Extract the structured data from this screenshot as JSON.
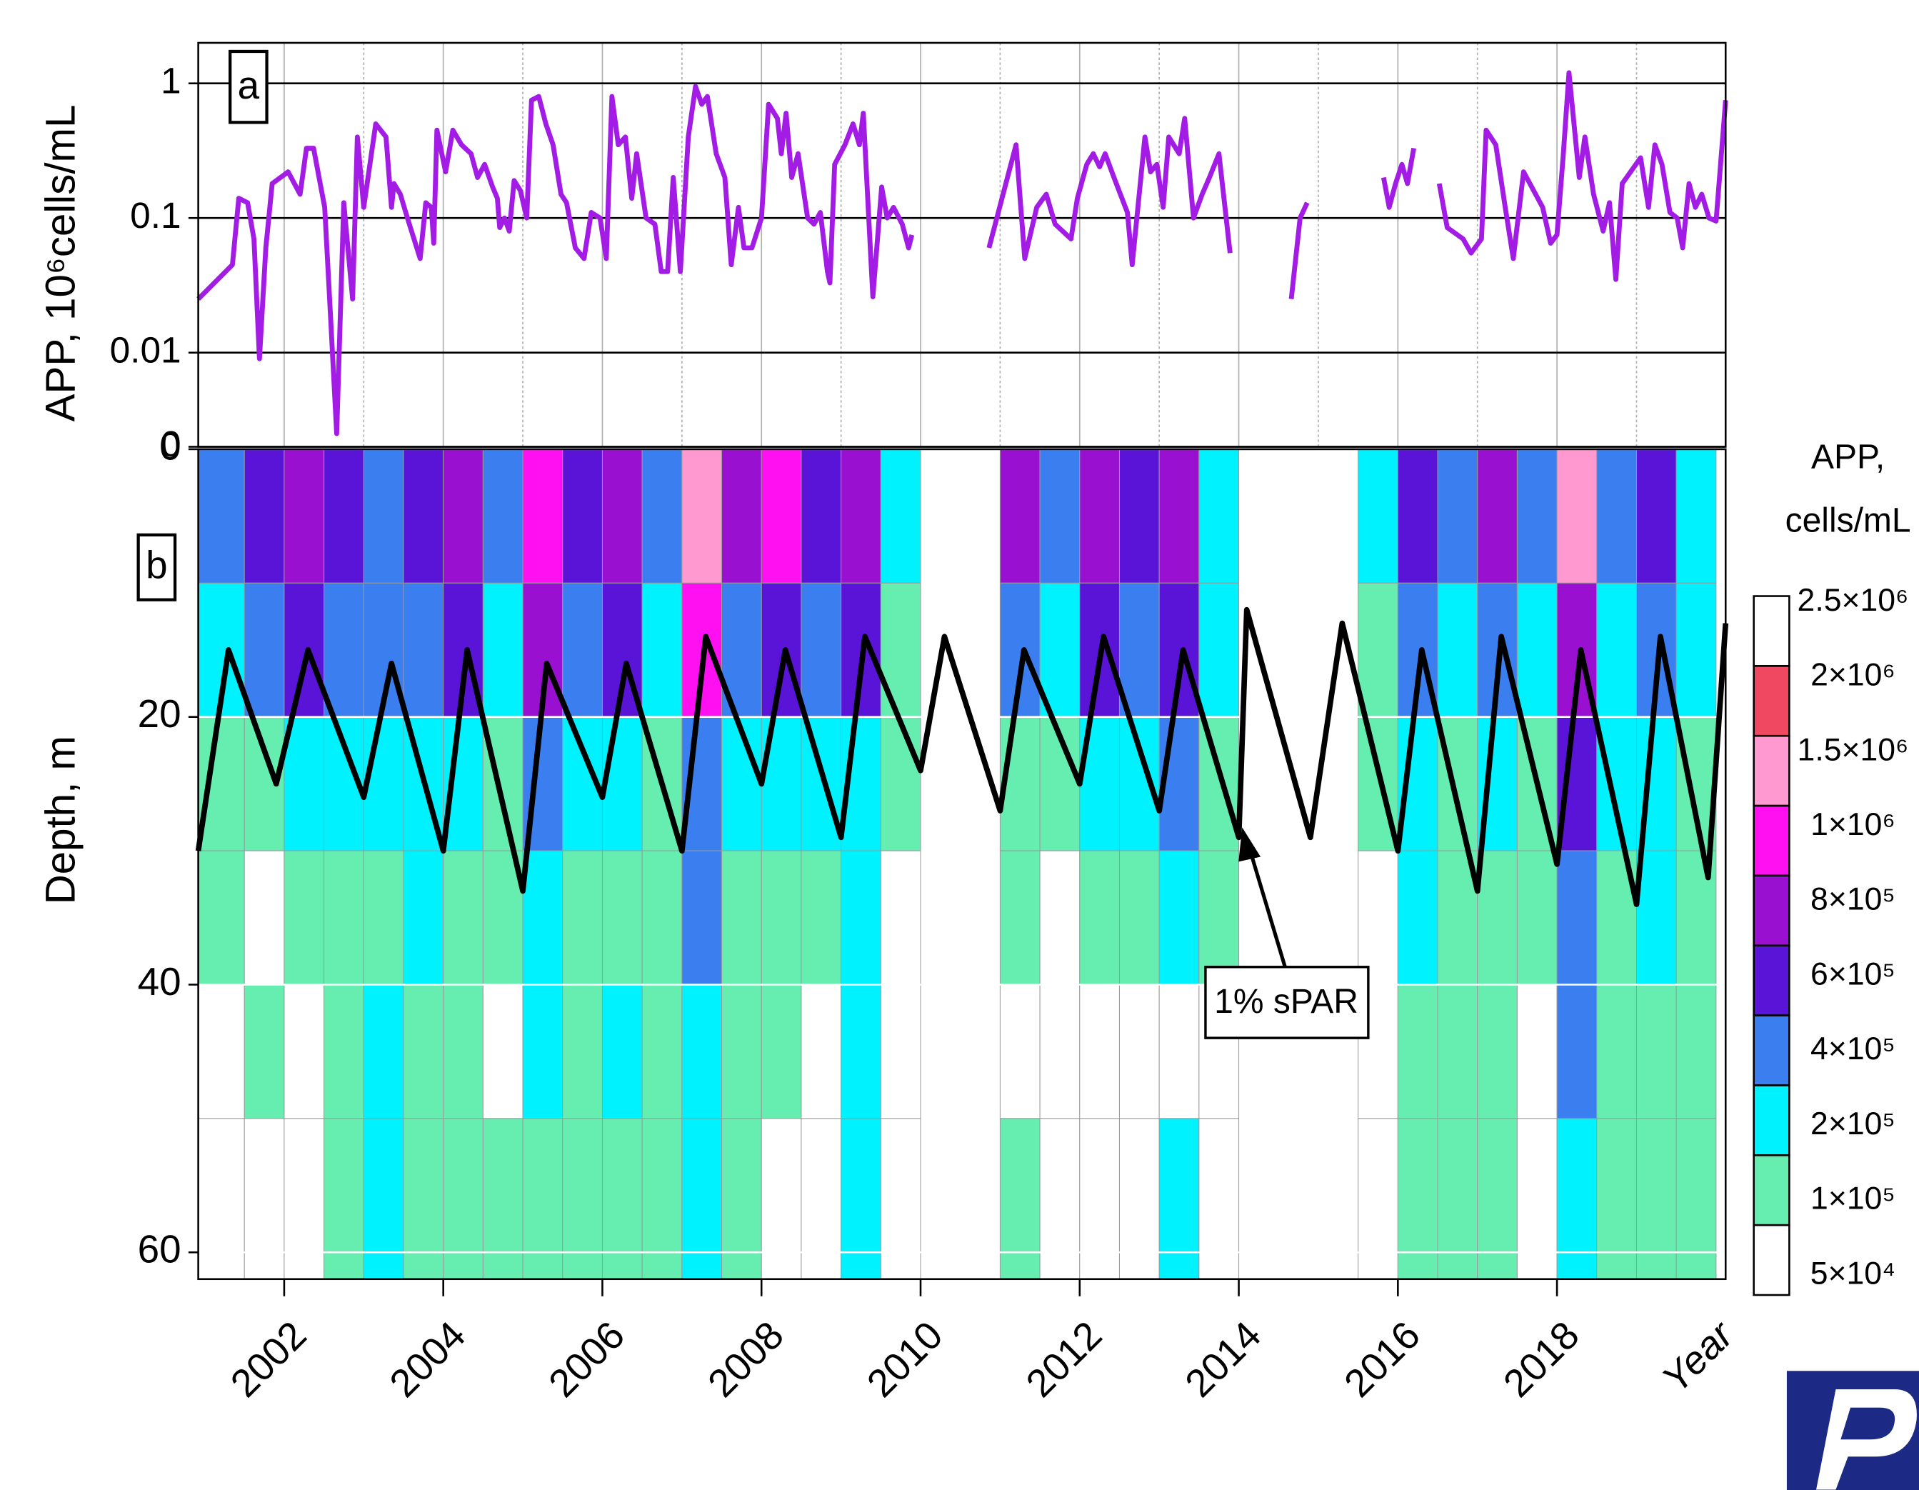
{
  "chart_data": [
    {
      "type": "line",
      "log_y": true,
      "y_label": "APP, 10⁶cells/mL",
      "annotation": "a",
      "xlim": [
        2000.92,
        2020.12
      ],
      "xgrid": [
        2002,
        2003,
        2004,
        2005,
        2006,
        2007,
        2008,
        2009,
        2010,
        2011,
        2012,
        2013,
        2014,
        2015,
        2016,
        2017,
        2018,
        2019
      ],
      "ylim": [
        0.002,
        2
      ],
      "yticks": [
        {
          "value": 0.002,
          "label": "0"
        },
        0.01,
        0.1,
        1
      ],
      "series": [
        {
          "color": "#a21ce6",
          "x": [
            2000.92,
            2001.35,
            2001.43,
            2001.54,
            2001.62,
            2001.69,
            2001.77,
            2001.85,
            2002.05,
            2002.2,
            2002.28,
            2002.37,
            2002.51,
            2002.58,
            2002.66,
            2002.75,
            2002.86,
            2002.92,
            2003.0,
            2003.15,
            2003.28,
            2003.35,
            2003.38,
            2003.46,
            2003.55,
            2003.71,
            2003.78,
            2003.85,
            2003.88,
            2003.92,
            2004.03,
            2004.12,
            2004.23,
            2004.35,
            2004.43,
            2004.52,
            2004.62,
            2004.68,
            2004.71,
            2004.77,
            2004.83,
            2004.89,
            2004.97,
            2005.05,
            2005.11,
            2005.2,
            2005.29,
            2005.38,
            2005.48,
            2005.55,
            2005.66,
            2005.77,
            2005.86,
            2005.97,
            2006.05,
            2006.12,
            2006.2,
            2006.29,
            2006.37,
            2006.43,
            2006.55,
            2006.66,
            2006.74,
            2006.82,
            2006.89,
            2006.98,
            2007.08,
            2007.17,
            2007.25,
            2007.32,
            2007.43,
            2007.54,
            2007.62,
            2007.71,
            2007.78,
            2007.88,
            2008.0,
            2008.09,
            2008.2,
            2008.25,
            2008.31,
            2008.38,
            2008.46,
            2008.58,
            2008.66,
            2008.74,
            2008.83,
            2008.86,
            2008.92,
            2009.05,
            2009.15,
            2009.23,
            2009.28,
            2009.4,
            2009.51,
            2009.58,
            2009.66,
            2009.77,
            2009.85,
            2009.89,
            2010.4,
            2010.86,
            2011.2,
            2011.31,
            2011.46,
            2011.58,
            2011.69,
            2011.89,
            2011.97,
            2012.09,
            2012.17,
            2012.25,
            2012.32,
            2012.43,
            2012.6,
            2012.66,
            2012.82,
            2012.89,
            2012.97,
            2013.05,
            2013.12,
            2013.25,
            2013.32,
            2013.43,
            2013.54,
            2013.63,
            2013.75,
            2013.89,
            2014.3,
            2014.66,
            2014.77,
            2014.86,
            2015.4,
            2015.82,
            2015.89,
            2015.97,
            2016.05,
            2016.12,
            2016.2,
            2016.35,
            2016.52,
            2016.62,
            2016.82,
            2016.92,
            2017.05,
            2017.11,
            2017.23,
            2017.35,
            2017.45,
            2017.58,
            2017.82,
            2017.92,
            2018.0,
            2018.08,
            2018.15,
            2018.28,
            2018.35,
            2018.46,
            2018.58,
            2018.66,
            2018.74,
            2018.82,
            2019.05,
            2019.15,
            2019.23,
            2019.32,
            2019.42,
            2019.51,
            2019.58,
            2019.66,
            2019.74,
            2019.82,
            2019.91,
            2020.0,
            2020.12
          ],
          "values": [
            0.025,
            0.045,
            0.14,
            0.13,
            0.07,
            0.009,
            0.06,
            0.18,
            0.22,
            0.15,
            0.33,
            0.33,
            0.12,
            0.02,
            0.0025,
            0.13,
            0.025,
            0.4,
            0.12,
            0.5,
            0.4,
            0.12,
            0.18,
            0.15,
            0.1,
            0.05,
            0.13,
            0.12,
            0.065,
            0.45,
            0.22,
            0.45,
            0.35,
            0.3,
            0.2,
            0.25,
            0.17,
            0.14,
            0.085,
            0.1,
            0.08,
            0.19,
            0.16,
            0.1,
            0.75,
            0.8,
            0.5,
            0.35,
            0.15,
            0.13,
            0.06,
            0.05,
            0.11,
            0.1,
            0.05,
            0.8,
            0.35,
            0.4,
            0.14,
            0.3,
            0.1,
            0.09,
            0.04,
            0.04,
            0.2,
            0.04,
            0.4,
            0.95,
            0.7,
            0.8,
            0.3,
            0.2,
            0.045,
            0.12,
            0.06,
            0.06,
            0.1,
            0.7,
            0.55,
            0.3,
            0.6,
            0.2,
            0.3,
            0.1,
            0.09,
            0.11,
            0.04,
            0.033,
            0.25,
            0.35,
            0.5,
            0.35,
            0.6,
            0.026,
            0.17,
            0.1,
            0.12,
            0.09,
            0.06,
            0.075,
            null,
            0.06,
            0.35,
            0.05,
            0.12,
            0.15,
            0.09,
            0.07,
            0.14,
            0.25,
            0.3,
            0.24,
            0.3,
            0.2,
            0.11,
            0.045,
            0.4,
            0.22,
            0.25,
            0.12,
            0.4,
            0.3,
            0.55,
            0.1,
            0.15,
            0.2,
            0.3,
            0.055,
            null,
            0.025,
            0.1,
            0.13,
            null,
            0.2,
            0.12,
            0.18,
            0.25,
            0.18,
            0.33,
            null,
            0.18,
            0.085,
            0.07,
            0.055,
            0.07,
            0.45,
            0.35,
            0.12,
            0.05,
            0.22,
            0.12,
            0.065,
            0.075,
            0.3,
            1.2,
            0.2,
            0.4,
            0.15,
            0.08,
            0.13,
            0.035,
            0.18,
            0.28,
            0.12,
            0.35,
            0.25,
            0.11,
            0.1,
            0.06,
            0.18,
            0.12,
            0.15,
            0.1,
            0.095,
            0.75
          ]
        }
      ]
    },
    {
      "type": "contour",
      "y_label": "Depth, m",
      "x_label": "Year",
      "annotation": "b",
      "xlim": [
        2000.92,
        2020.12
      ],
      "xticks": [
        2002,
        2004,
        2006,
        2008,
        2010,
        2012,
        2014,
        2016,
        2018
      ],
      "ylim": [
        0,
        62
      ],
      "yticks": [
        0,
        20,
        40,
        60
      ],
      "grid": true,
      "x_bins": [
        2000.92,
        2001.5,
        2002,
        2002.5,
        2003,
        2003.5,
        2004,
        2004.5,
        2005,
        2005.5,
        2006,
        2006.5,
        2007,
        2007.5,
        2008,
        2008.5,
        2009,
        2009.5,
        2010,
        2010.5,
        2011,
        2011.5,
        2012,
        2012.5,
        2013,
        2013.5,
        2014,
        2014.5,
        2015,
        2015.5,
        2016,
        2016.5,
        2017,
        2017.5,
        2018,
        2018.5,
        2019,
        2019.5,
        2020
      ],
      "depth_bins": [
        0,
        10,
        20,
        30,
        40,
        50,
        62
      ],
      "values": [
        [
          400000,
          700000,
          800000,
          600000,
          500000,
          700000,
          800000,
          400000,
          1000000,
          600000,
          800000,
          400000,
          1500000,
          800000,
          1000000,
          600000,
          800000,
          200000,
          null,
          null,
          800000,
          400000,
          800000,
          600000,
          800000,
          200000,
          null,
          null,
          null,
          200000,
          600000,
          400000,
          800000,
          400000,
          1500000,
          400000,
          600000,
          200000
        ],
        [
          200000,
          400000,
          600000,
          400000,
          400000,
          400000,
          600000,
          200000,
          800000,
          400000,
          600000,
          200000,
          1000000,
          400000,
          600000,
          400000,
          600000,
          100000,
          null,
          null,
          400000,
          200000,
          600000,
          400000,
          600000,
          200000,
          null,
          null,
          null,
          100000,
          400000,
          200000,
          400000,
          200000,
          800000,
          200000,
          400000,
          200000
        ],
        [
          100000,
          100000,
          200000,
          200000,
          200000,
          200000,
          200000,
          100000,
          400000,
          200000,
          200000,
          100000,
          400000,
          200000,
          200000,
          200000,
          200000,
          100000,
          null,
          null,
          100000,
          100000,
          200000,
          200000,
          400000,
          100000,
          null,
          null,
          null,
          100000,
          200000,
          100000,
          200000,
          100000,
          600000,
          200000,
          200000,
          100000
        ],
        [
          100000,
          50000,
          100000,
          100000,
          100000,
          200000,
          100000,
          100000,
          200000,
          100000,
          100000,
          100000,
          400000,
          100000,
          100000,
          100000,
          200000,
          50000,
          null,
          null,
          100000,
          50000,
          100000,
          100000,
          200000,
          100000,
          null,
          null,
          null,
          50000,
          200000,
          100000,
          100000,
          100000,
          400000,
          100000,
          200000,
          100000
        ],
        [
          50000,
          100000,
          50000,
          100000,
          200000,
          100000,
          100000,
          50000,
          200000,
          100000,
          200000,
          100000,
          200000,
          100000,
          100000,
          50000,
          200000,
          50000,
          null,
          null,
          50000,
          50000,
          50000,
          50000,
          50000,
          50000,
          null,
          null,
          null,
          50000,
          100000,
          100000,
          100000,
          50000,
          400000,
          100000,
          100000,
          100000
        ],
        [
          50000,
          50000,
          50000,
          100000,
          200000,
          100000,
          100000,
          100000,
          100000,
          100000,
          100000,
          100000,
          200000,
          100000,
          50000,
          50000,
          200000,
          50000,
          null,
          null,
          100000,
          50000,
          50000,
          50000,
          200000,
          50000,
          null,
          null,
          null,
          50000,
          100000,
          100000,
          100000,
          50000,
          200000,
          100000,
          100000,
          100000
        ]
      ],
      "colorbar": {
        "title": [
          "APP,",
          "cells/mL"
        ],
        "levels": [
          {
            "value": 50000,
            "label": "5×10⁴"
          },
          {
            "value": 100000,
            "label": "1×10⁵"
          },
          {
            "value": 200000,
            "label": "2×10⁵"
          },
          {
            "value": 400000,
            "label": "4×10⁵"
          },
          {
            "value": 600000,
            "label": "6×10⁵"
          },
          {
            "value": 800000,
            "label": "8×10⁵"
          },
          {
            "value": 1000000,
            "label": "1×10⁶"
          },
          {
            "value": 1500000,
            "label": "1.5×10⁶"
          },
          {
            "value": 2000000,
            "label": "2×10⁶"
          },
          {
            "value": 2500000,
            "label": "2.5×10⁶"
          }
        ],
        "colors": [
          "#ffffff",
          "#66eeb0",
          "#00f2ff",
          "#3a7ef0",
          "#5a14d8",
          "#9a10d0",
          "#ff10f0",
          "#ff99d0",
          "#f04860",
          "#ffffff"
        ]
      },
      "series": [
        {
          "name": "1% sPAR",
          "color": "#000000",
          "x": [
            2000.92,
            2001.3,
            2001.9,
            2002.3,
            2003.0,
            2003.35,
            2004.0,
            2004.3,
            2005.0,
            2005.3,
            2006.0,
            2006.3,
            2007.0,
            2007.3,
            2008.0,
            2008.3,
            2009.0,
            2009.3,
            2010.0,
            2010.3,
            2011.0,
            2011.3,
            2012.0,
            2012.3,
            2013.0,
            2013.3,
            2014.0,
            2014.1,
            2014.9,
            2015.3,
            2016.0,
            2016.3,
            2017.0,
            2017.3,
            2018.0,
            2018.3,
            2019.0,
            2019.3,
            2019.9,
            2020.12
          ],
          "values": [
            30,
            15,
            25,
            15,
            26,
            16,
            30,
            15,
            33,
            16,
            26,
            16,
            30,
            14,
            25,
            15,
            29,
            14,
            24,
            14,
            27,
            15,
            25,
            14,
            27,
            15,
            29,
            12,
            29,
            13,
            30,
            15,
            33,
            14,
            31,
            15,
            34,
            14,
            32,
            13
          ]
        }
      ]
    }
  ]
}
